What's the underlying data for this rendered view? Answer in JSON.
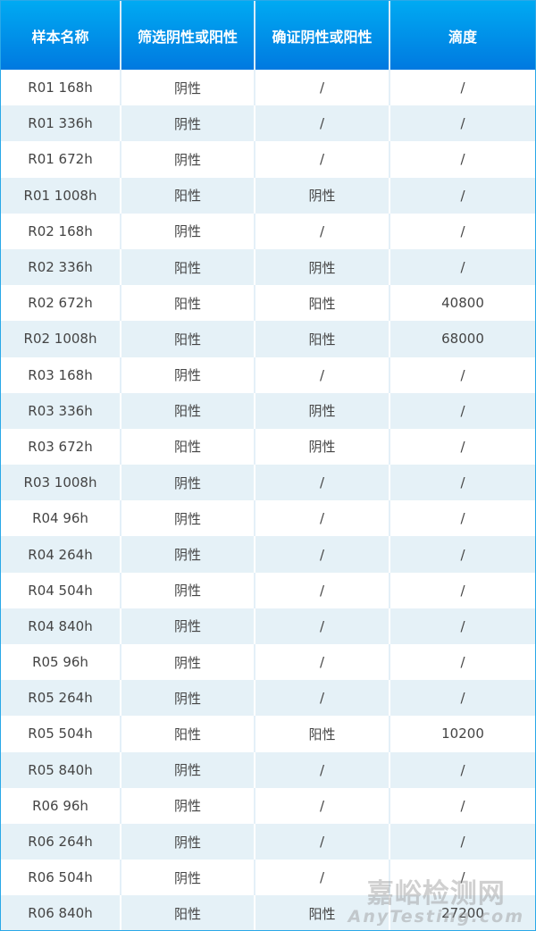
{
  "headers": [
    "样本名称",
    "筛选阴性或阳性",
    "确证阴性或阳性",
    "滴度"
  ],
  "rows": [
    [
      "R01 168h",
      "阴性",
      "/",
      "/"
    ],
    [
      "R01 336h",
      "阴性",
      "/",
      "/"
    ],
    [
      "R01 672h",
      "阴性",
      "/",
      "/"
    ],
    [
      "R01 1008h",
      "阳性",
      "阴性",
      "/"
    ],
    [
      "R02 168h",
      "阴性",
      "/",
      "/"
    ],
    [
      "R02 336h",
      "阳性",
      "阴性",
      "/"
    ],
    [
      "R02 672h",
      "阳性",
      "阳性",
      "40800"
    ],
    [
      "R02 1008h",
      "阳性",
      "阳性",
      "68000"
    ],
    [
      "R03 168h",
      "阴性",
      "/",
      "/"
    ],
    [
      "R03 336h",
      "阳性",
      "阴性",
      "/"
    ],
    [
      "R03 672h",
      "阳性",
      "阴性",
      "/"
    ],
    [
      "R03 1008h",
      "阴性",
      "/",
      "/"
    ],
    [
      "R04 96h",
      "阴性",
      "/",
      "/"
    ],
    [
      "R04 264h",
      "阴性",
      "/",
      "/"
    ],
    [
      "R04 504h",
      "阴性",
      "/",
      "/"
    ],
    [
      "R04 840h",
      "阴性",
      "/",
      "/"
    ],
    [
      "R05 96h",
      "阴性",
      "/",
      "/"
    ],
    [
      "R05 264h",
      "阴性",
      "/",
      "/"
    ],
    [
      "R05 504h",
      "阳性",
      "阳性",
      "10200"
    ],
    [
      "R05 840h",
      "阴性",
      "/",
      "/"
    ],
    [
      "R06 96h",
      "阴性",
      "/",
      "/"
    ],
    [
      "R06 264h",
      "阴性",
      "/",
      "/"
    ],
    [
      "R06 504h",
      "阴性",
      "/",
      "/"
    ],
    [
      "R06 840h",
      "阳性",
      "阳性",
      "27200"
    ]
  ],
  "watermark": {
    "cn": "嘉峪检测网",
    "en": "AnyTesting.com"
  },
  "colors": {
    "header_top": "#00aaf2",
    "header_bottom": "#0079e0",
    "alt_row": "#e5f1f7"
  }
}
